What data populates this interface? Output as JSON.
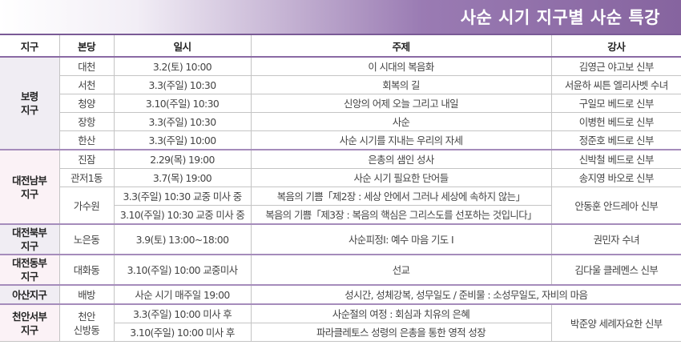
{
  "title": "사순 시기 지구별 사순 특강",
  "headers": [
    "지구",
    "본당",
    "일시",
    "주제",
    "강사"
  ],
  "groups": [
    {
      "region": "보령\n지구",
      "rows": [
        {
          "parish": "대천",
          "datetime": "3.2(토) 10:00",
          "topic": "이 시대의 복음화",
          "lecturer": "김영근 야고보 신부"
        },
        {
          "parish": "서천",
          "datetime": "3.3(주일) 10:30",
          "topic": "회복의 길",
          "lecturer": "서윤하 씨튼 엘리사벳 수녀"
        },
        {
          "parish": "청양",
          "datetime": "3.10(주일) 10:30",
          "topic": "신앙의 어제 오늘 그리고 내일",
          "lecturer": "구일모 베드로 신부"
        },
        {
          "parish": "장항",
          "datetime": "3.3(주일) 10:30",
          "topic": "사순",
          "lecturer": "이병헌 베드로 신부"
        },
        {
          "parish": "한산",
          "datetime": "3.3(주일) 10:00",
          "topic": "사순 시기를 지내는 우리의 자세",
          "lecturer": "정준호 베드로 신부"
        }
      ]
    },
    {
      "region": "대전남부\n지구",
      "rows": [
        {
          "parish": "진잠",
          "datetime": "2.29(목) 19:00",
          "topic": "은총의 샘인 성사",
          "lecturer": "신박철 베드로 신부"
        },
        {
          "parish": "관저1동",
          "datetime": "3.7(목) 19:00",
          "topic": "사순 시기 필요한 단어들",
          "lecturer": "송지영 바오로 신부"
        },
        {
          "parish": "가수원",
          "datetime": "3.3(주일) 10:30 교중 미사 중",
          "topic": "복음의 기쁨「제2장 : 세상 안에서 그러나 세상에 속하지 않는」",
          "lecturer": "안동훈 안드레아 신부"
        },
        {
          "datetime": "3.10(주일) 10:30 교중 미사 중",
          "topic": "복음의 기쁨「제3장 : 복음의 핵심은 그리스도를 선포하는 것입니다」"
        }
      ]
    },
    {
      "region": "대전북부\n지구",
      "rows": [
        {
          "parish": "노은동",
          "datetime": "3.9(토) 13:00~18:00",
          "topic": "사순피정Ⅰ: 예수 마음 기도 Ⅰ",
          "lecturer": "권민자 수녀"
        }
      ]
    },
    {
      "region": "대전동부\n지구",
      "rows": [
        {
          "parish": "대화동",
          "datetime": "3.10(주일) 10:00 교중미사",
          "topic": "선교",
          "lecturer": "김다울 클레멘스 신부"
        }
      ]
    },
    {
      "region": "아산지구",
      "rows": [
        {
          "parish": "배방",
          "datetime": "사순 시기 매주일 19:00",
          "topic": "성시간, 성체강복, 성무일도 / 준비물 : 소성무일도, 자비의 마음"
        }
      ]
    },
    {
      "region": "천안서부\n지구",
      "rows": [
        {
          "parish": "천안\n신방동",
          "datetime": "3.3(주일) 10:00 미사 후",
          "topic": "사순절의 여정 : 회심과 치유의 은혜",
          "lecturer": "박준양 세례자요한 신부"
        },
        {
          "datetime": "3.10(주일) 10:00 미사 후",
          "topic": "파라클레토스 성령의 은총을 통한 영적 성장"
        }
      ]
    }
  ]
}
